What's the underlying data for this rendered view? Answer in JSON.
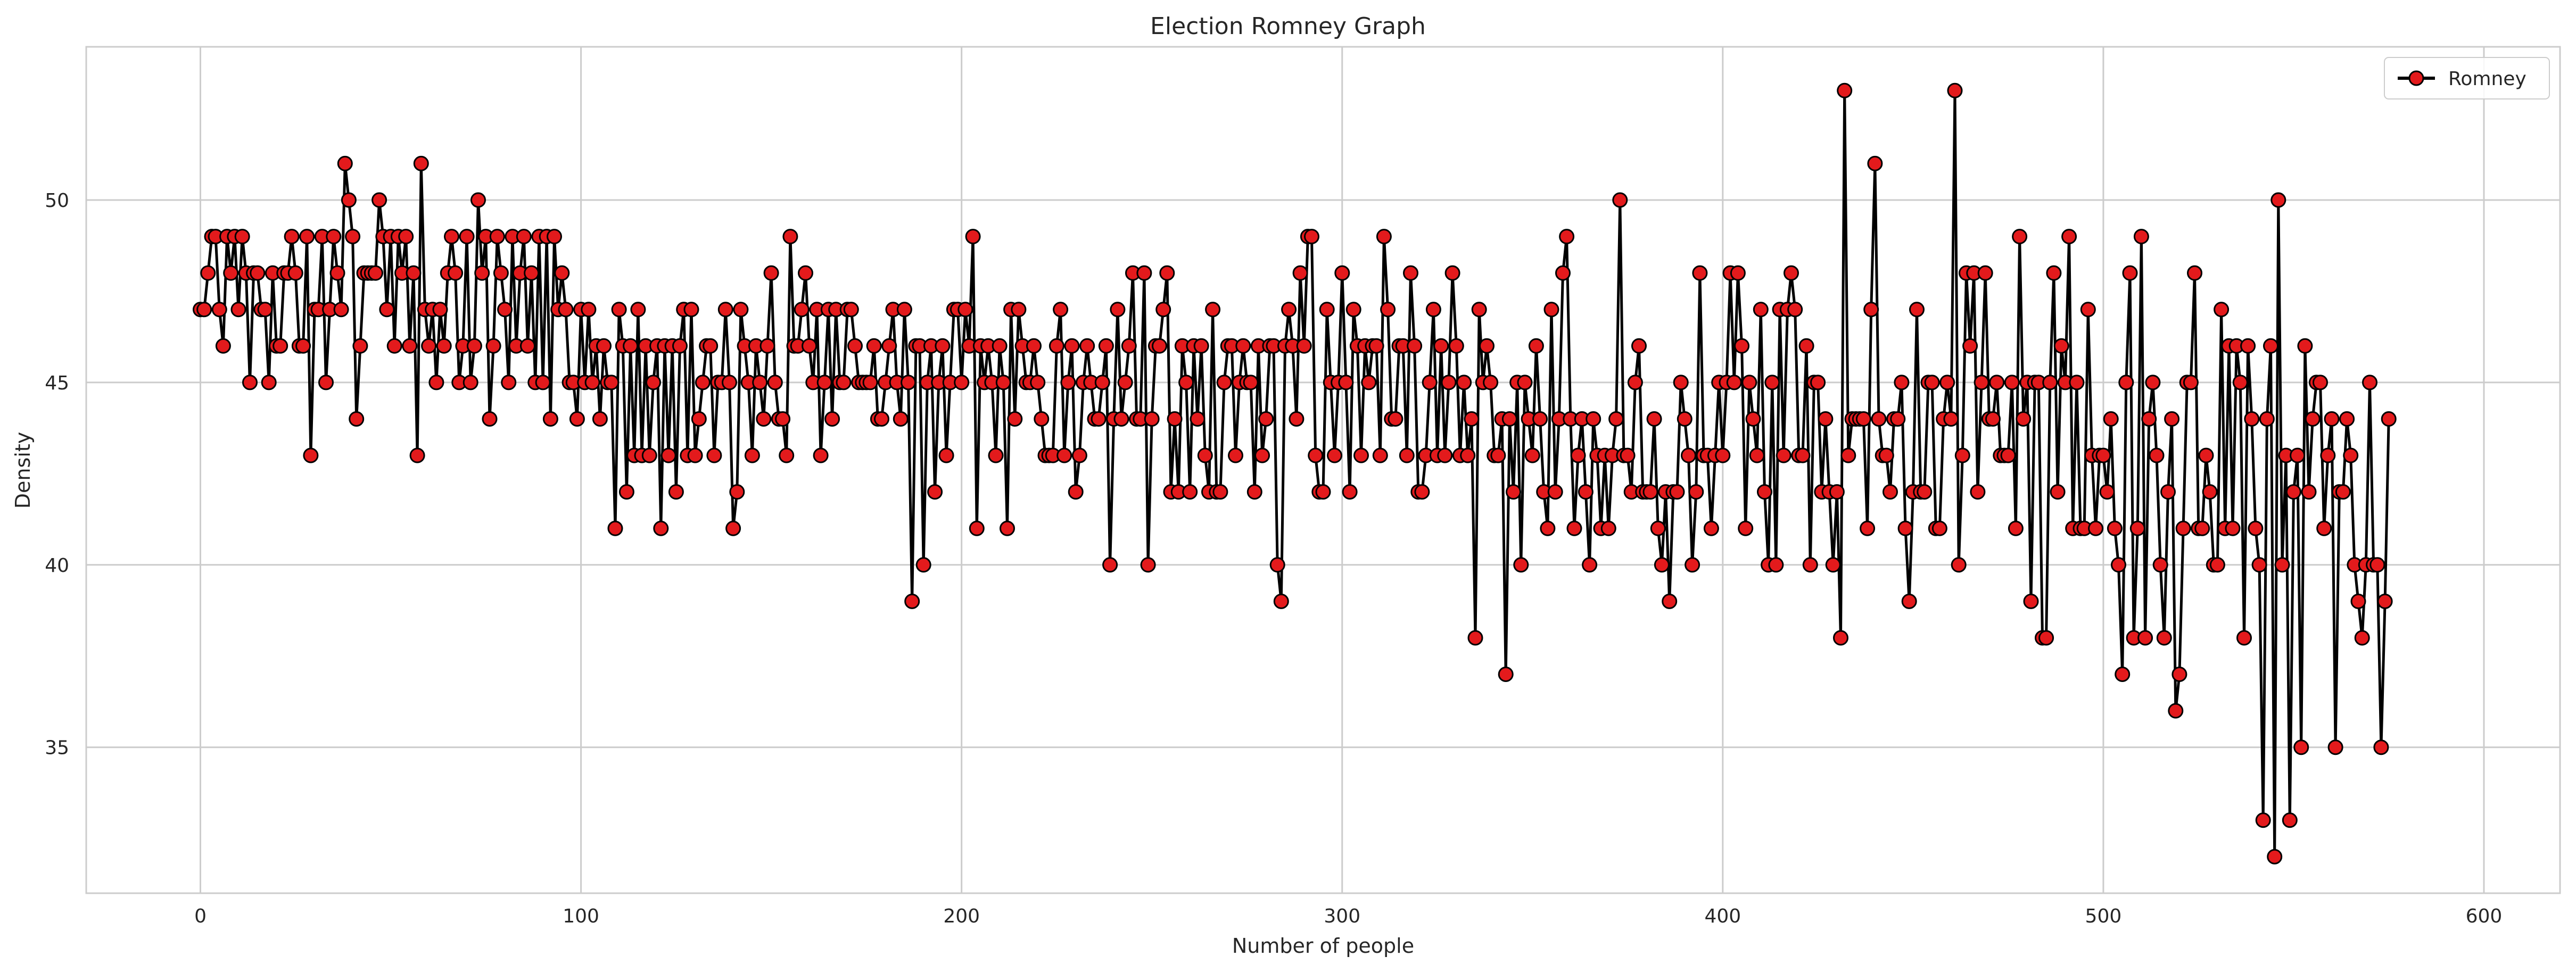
{
  "chart_data": {
    "type": "line",
    "title": "Election Romney Graph",
    "xlabel": "Number of people",
    "ylabel": "Density",
    "xlim": [
      -30,
      620
    ],
    "ylim": [
      31.0,
      54.2
    ],
    "xticks": [
      0,
      100,
      200,
      300,
      400,
      500,
      600
    ],
    "yticks": [
      35,
      40,
      45,
      50
    ],
    "grid": true,
    "legend_position": "top-right",
    "series": [
      {
        "name": "Romney",
        "line_color": "#000000",
        "marker_fill": "#e31a1c",
        "marker_edge": "#000000",
        "values": [
          47,
          47,
          48,
          49,
          49,
          47,
          46,
          49,
          48,
          49,
          47,
          49,
          48,
          45,
          48,
          48,
          47,
          47,
          45,
          48,
          46,
          46,
          48,
          48,
          49,
          48,
          46,
          46,
          49,
          43,
          47,
          47,
          49,
          45,
          47,
          49,
          48,
          47,
          51,
          50,
          49,
          44,
          46,
          48,
          48,
          48,
          48,
          50,
          49,
          47,
          49,
          46,
          49,
          48,
          49,
          46,
          48,
          43,
          51,
          47,
          46,
          47,
          45,
          47,
          46,
          48,
          49,
          48,
          45,
          46,
          49,
          45,
          46,
          50,
          48,
          49,
          44,
          46,
          49,
          48,
          47,
          45,
          49,
          46,
          48,
          49,
          46,
          48,
          45,
          49,
          45,
          49,
          44,
          49,
          47,
          48,
          47,
          45,
          45,
          44,
          47,
          45,
          47,
          45,
          46,
          44,
          46,
          45,
          45,
          41,
          47,
          46,
          42,
          46,
          43,
          47,
          43,
          46,
          43,
          45,
          46,
          41,
          46,
          43,
          46,
          42,
          46,
          47,
          43,
          47,
          43,
          44,
          45,
          46,
          46,
          43,
          45,
          45,
          47,
          45,
          41,
          42,
          47,
          46,
          45,
          43,
          46,
          45,
          44,
          46,
          48,
          45,
          44,
          44,
          43,
          49,
          46,
          46,
          47,
          48,
          46,
          45,
          47,
          43,
          45,
          47,
          44,
          47,
          45,
          45,
          47,
          47,
          46,
          45,
          45,
          45,
          45,
          46,
          44,
          44,
          45,
          46,
          47,
          45,
          44,
          47,
          45,
          39,
          46,
          46,
          40,
          45,
          46,
          42,
          45,
          46,
          43,
          45,
          47,
          47,
          45,
          47,
          46,
          49,
          41,
          46,
          45,
          46,
          45,
          43,
          46,
          45,
          41,
          47,
          44,
          47,
          46,
          45,
          45,
          46,
          45,
          44,
          43,
          43,
          43,
          46,
          47,
          43,
          45,
          46,
          42,
          43,
          45,
          46,
          45,
          44,
          44,
          45,
          46,
          40,
          44,
          47,
          44,
          45,
          46,
          48,
          44,
          44,
          48,
          40,
          44,
          46,
          46,
          47,
          48,
          42,
          44,
          42,
          46,
          45,
          42,
          46,
          44,
          46,
          43,
          42,
          47,
          42,
          42,
          45,
          46,
          46,
          43,
          45,
          46,
          45,
          45,
          42,
          46,
          43,
          44,
          46,
          46,
          40,
          39,
          46,
          47,
          46,
          44,
          48,
          46,
          49,
          49,
          43,
          42,
          42,
          47,
          45,
          43,
          45,
          48,
          45,
          42,
          47,
          46,
          43,
          46,
          45,
          46,
          46,
          43,
          49,
          47,
          44,
          44,
          46,
          46,
          43,
          48,
          46,
          42,
          42,
          43,
          45,
          47,
          43,
          46,
          43,
          45,
          48,
          46,
          43,
          45,
          43,
          44,
          38,
          47,
          45,
          46,
          45,
          43,
          43,
          44,
          37,
          44,
          42,
          45,
          40,
          45,
          44,
          43,
          46,
          44,
          42,
          41,
          47,
          42,
          44,
          48,
          49,
          44,
          41,
          43,
          44,
          42,
          40,
          44,
          43,
          41,
          43,
          41,
          43,
          44,
          50,
          43,
          43,
          42,
          45,
          46,
          42,
          42,
          42,
          44,
          41,
          40,
          42,
          39,
          42,
          42,
          45,
          44,
          43,
          40,
          42,
          48,
          43,
          43,
          41,
          43,
          45,
          43,
          45,
          48,
          45,
          48,
          46,
          41,
          45,
          44,
          43,
          47,
          42,
          40,
          45,
          40,
          47,
          43,
          47,
          48,
          47,
          43,
          43,
          46,
          40,
          45,
          45,
          42,
          44,
          42,
          40,
          42,
          38,
          53,
          43,
          44,
          44,
          44,
          44,
          41,
          47,
          51,
          44,
          43,
          43,
          42,
          44,
          44,
          45,
          41,
          39,
          42,
          47,
          42,
          42,
          45,
          45,
          41,
          41,
          44,
          45,
          44,
          53,
          40,
          43,
          48,
          46,
          48,
          42,
          45,
          48,
          44,
          44,
          45,
          43,
          43,
          43,
          45,
          41,
          49,
          44,
          45,
          39,
          45,
          45,
          38,
          38,
          45,
          48,
          42,
          46,
          45,
          49,
          41,
          45,
          41,
          41,
          47,
          43,
          41,
          43,
          43,
          42,
          44,
          41,
          40,
          37,
          45,
          48,
          38,
          41,
          49,
          38,
          44,
          45,
          43,
          40,
          38,
          42,
          44,
          36,
          37,
          41,
          45,
          45,
          48,
          41,
          41,
          43,
          42,
          40,
          40,
          47,
          41,
          46,
          41,
          46,
          45,
          38,
          46,
          44,
          41,
          40,
          33,
          44,
          46,
          32,
          50,
          40,
          43,
          33,
          42,
          43,
          35,
          46,
          42,
          44,
          45,
          45,
          41,
          43,
          44,
          35,
          42,
          42,
          44,
          43,
          40,
          39,
          38,
          40,
          45,
          40,
          40,
          35,
          39,
          44
        ]
      }
    ]
  }
}
